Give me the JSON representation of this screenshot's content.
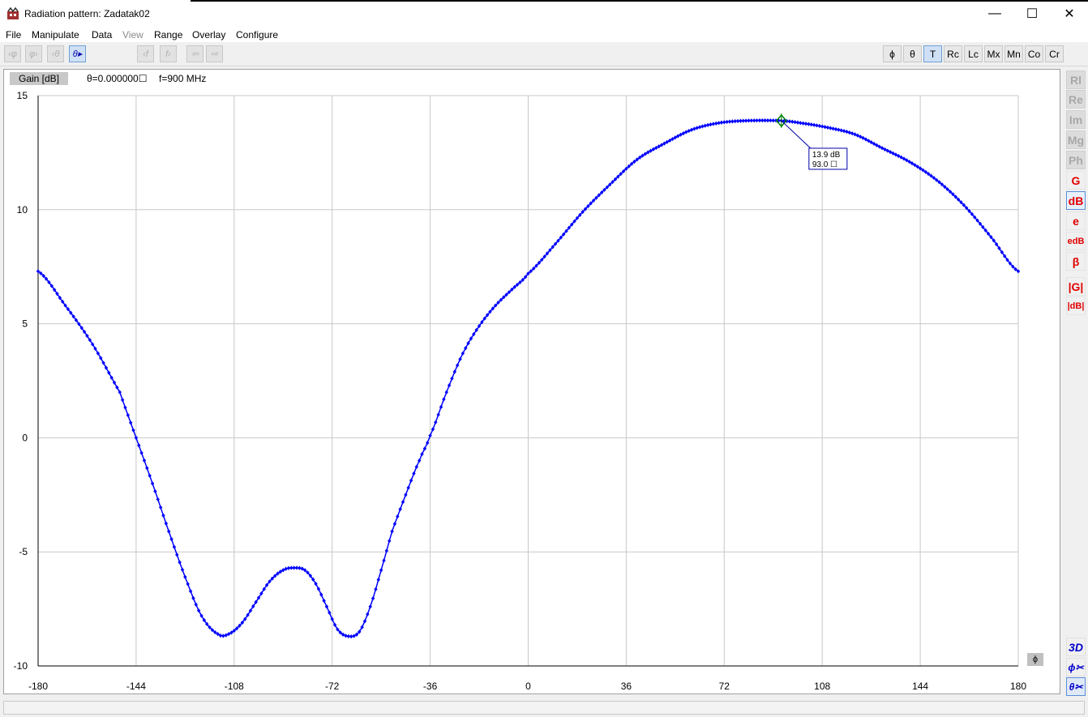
{
  "window": {
    "title": "Radiation pattern: Zadatak02",
    "minimize_glyph": "—",
    "maximize_glyph": "☐",
    "close_glyph": "✕"
  },
  "menu": [
    {
      "label": "File",
      "enabled": true
    },
    {
      "label": "Manipulate",
      "enabled": true
    },
    {
      "label": "Data",
      "enabled": true
    },
    {
      "label": "View",
      "enabled": false
    },
    {
      "label": "Range",
      "enabled": true
    },
    {
      "label": "Overlay",
      "enabled": true
    },
    {
      "label": "Configure",
      "enabled": true
    }
  ],
  "toolbar": {
    "left_buttons": [
      "‹φ",
      "φ›",
      "‹θ",
      "θ▸",
      "‹f",
      "f›",
      "⇦",
      "⇨"
    ],
    "right_buttons": [
      {
        "label": "ϕ",
        "active": false
      },
      {
        "label": "θ",
        "active": false
      },
      {
        "label": "T",
        "active": true
      },
      {
        "label": "Rc",
        "active": false
      },
      {
        "label": "Lc",
        "active": false
      },
      {
        "label": "Mx",
        "active": false
      },
      {
        "label": "Mn",
        "active": false
      },
      {
        "label": "Co",
        "active": false
      },
      {
        "label": "Cr",
        "active": false
      }
    ]
  },
  "plot_header": {
    "gain_label": "Gain [dB]",
    "theta_info": "θ=0.000000☐",
    "freq_info": "f=900 MHz",
    "axis_button": "ϕ"
  },
  "sidebar": {
    "top": [
      {
        "label": "Rl",
        "style": "grey"
      },
      {
        "label": "Re",
        "style": "grey"
      },
      {
        "label": "Im",
        "style": "grey"
      },
      {
        "label": "Mg",
        "style": "grey"
      },
      {
        "label": "Ph",
        "style": "grey"
      },
      {
        "label": "G",
        "style": "red"
      },
      {
        "label": "dB",
        "style": "active"
      },
      {
        "label": "e",
        "style": "red"
      },
      {
        "label": "edB",
        "style": "red"
      },
      {
        "label": "β",
        "style": "red"
      },
      {
        "label": "|G|",
        "style": "red"
      },
      {
        "label": "|dB|",
        "style": "red"
      }
    ],
    "bottom": [
      {
        "label": "3D",
        "style": "blue"
      },
      {
        "label": "ϕ✂",
        "style": "blue"
      },
      {
        "label": "θ✂",
        "style": "blue-active"
      }
    ]
  },
  "colors": {
    "trace": "#0000ff",
    "marker": "#008000",
    "grid": "#c8c8c8"
  },
  "chart_data": {
    "type": "line",
    "xlim": [
      -180,
      180
    ],
    "ylim": [
      -10,
      15
    ],
    "x_ticks": [
      -180,
      -144,
      -108,
      -72,
      -36,
      0,
      36,
      72,
      108,
      144,
      180
    ],
    "y_ticks": [
      15,
      10,
      5,
      0,
      -5,
      -10
    ],
    "grid": true,
    "series": [
      {
        "marker": "diamond",
        "points": [
          [
            -180,
            7.3
          ],
          [
            -170,
            5.8
          ],
          [
            -160,
            4.1
          ],
          [
            -150,
            2.0
          ],
          [
            -144,
            0.0
          ],
          [
            -138,
            -2.0
          ],
          [
            -132,
            -4.1
          ],
          [
            -126,
            -6.1
          ],
          [
            -120,
            -7.8
          ],
          [
            -114,
            -8.6
          ],
          [
            -110,
            -8.6
          ],
          [
            -105,
            -8.1
          ],
          [
            -100,
            -7.2
          ],
          [
            -95,
            -6.3
          ],
          [
            -90,
            -5.8
          ],
          [
            -86,
            -5.7
          ],
          [
            -82,
            -5.8
          ],
          [
            -78,
            -6.4
          ],
          [
            -74,
            -7.4
          ],
          [
            -70,
            -8.4
          ],
          [
            -66,
            -8.7
          ],
          [
            -62,
            -8.5
          ],
          [
            -58,
            -7.4
          ],
          [
            -54,
            -5.8
          ],
          [
            -50,
            -4.1
          ],
          [
            -45,
            -2.5
          ],
          [
            -40,
            -1.0
          ],
          [
            -36,
            0.1
          ],
          [
            -30,
            2.0
          ],
          [
            -24,
            3.7
          ],
          [
            -18,
            4.9
          ],
          [
            -12,
            5.8
          ],
          [
            -6,
            6.5
          ],
          [
            0,
            7.2
          ],
          [
            10,
            8.5
          ],
          [
            20,
            9.9
          ],
          [
            30,
            11.1
          ],
          [
            40,
            12.2
          ],
          [
            50,
            12.9
          ],
          [
            60,
            13.5
          ],
          [
            70,
            13.8
          ],
          [
            80,
            13.9
          ],
          [
            93,
            13.9
          ],
          [
            100,
            13.8
          ],
          [
            110,
            13.6
          ],
          [
            120,
            13.3
          ],
          [
            130,
            12.7
          ],
          [
            140,
            12.1
          ],
          [
            150,
            11.3
          ],
          [
            160,
            10.2
          ],
          [
            170,
            8.8
          ],
          [
            180,
            7.3
          ]
        ]
      }
    ],
    "marker": {
      "x": 93.0,
      "y": 13.9,
      "label_db": "13.9 dB",
      "label_deg": "93.0 ☐"
    }
  }
}
